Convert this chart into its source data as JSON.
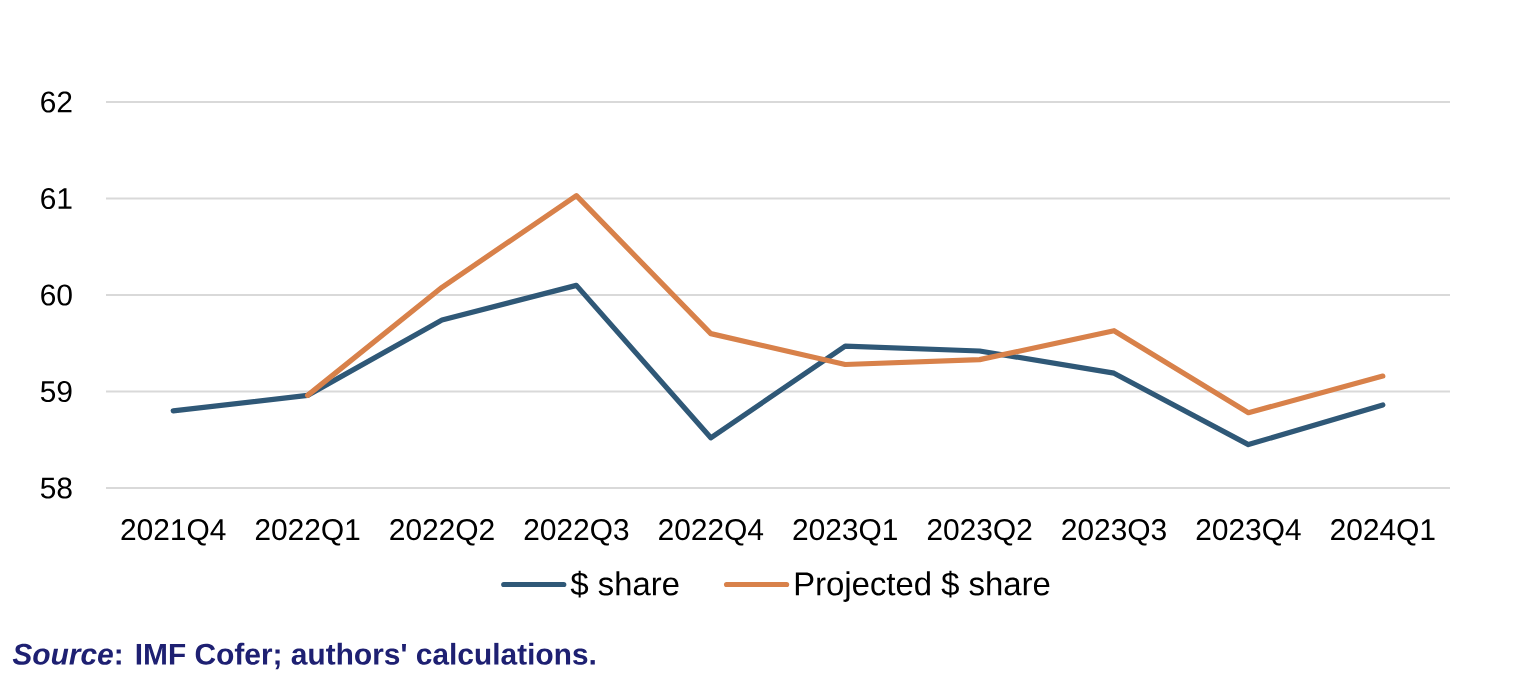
{
  "chart_data": {
    "type": "line",
    "categories": [
      "2021Q4",
      "2022Q1",
      "2022Q2",
      "2022Q3",
      "2022Q4",
      "2023Q1",
      "2023Q2",
      "2023Q3",
      "2023Q4",
      "2024Q1"
    ],
    "series": [
      {
        "name": "$ share",
        "color": "#2f5877",
        "values": [
          58.8,
          58.96,
          59.74,
          60.1,
          58.52,
          59.47,
          59.42,
          59.19,
          58.45,
          58.86
        ]
      },
      {
        "name": "Projected $ share",
        "color": "#d8814a",
        "values": [
          null,
          58.96,
          60.08,
          61.03,
          59.6,
          59.28,
          59.33,
          59.63,
          58.78,
          59.16
        ]
      }
    ],
    "ylim": [
      58,
      62
    ],
    "yticks": [
      58,
      59,
      60,
      61,
      62
    ],
    "grid": "y",
    "legend": "bottom",
    "marker": "none",
    "line_style": "solid",
    "annotations": [
      "*Source*: IMF Cofer; authors' calculations."
    ]
  }
}
